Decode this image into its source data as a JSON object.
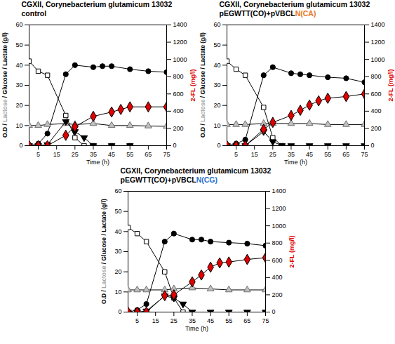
{
  "chart_data": [
    {
      "type": "line",
      "title": "CGXII, Corynebacterium glutamicum 13032",
      "subtitle": [
        {
          "text": "control",
          "color": "#000000"
        }
      ],
      "xlabel": "Time (h)",
      "ylabel": [
        {
          "text": "O.D / ",
          "color": "#000000"
        },
        {
          "text": "Lactose",
          "color": "#a6a6a6"
        },
        {
          "text": " / Glucose / Lactate (g/l)",
          "color": "#000000"
        }
      ],
      "y2label": "2-FL (mg/l)",
      "y2label_color": "#e00000",
      "xlim": [
        0,
        75
      ],
      "xticks": [
        5,
        15,
        25,
        35,
        45,
        55,
        65,
        75
      ],
      "ylim": [
        0,
        60
      ],
      "yticks": [
        0,
        10,
        20,
        30,
        40,
        50,
        60
      ],
      "y2lim": [
        0,
        1400
      ],
      "y2ticks": [
        0,
        200,
        400,
        600,
        800,
        1000,
        1200,
        1400
      ],
      "series": [
        {
          "name": "O.D",
          "color": "#000000",
          "marker": "circle",
          "x": [
            0,
            5,
            10,
            20,
            25,
            35,
            40,
            45,
            55,
            65,
            75
          ],
          "values": [
            0,
            1,
            6,
            35.5,
            40,
            39,
            39.5,
            39.5,
            38,
            37,
            36.5
          ]
        },
        {
          "name": "Glucose",
          "color": "#000000",
          "marker": "square",
          "x": [
            0,
            5,
            10,
            20,
            25,
            30,
            35,
            45,
            55
          ],
          "values": [
            42,
            37,
            35,
            15,
            4,
            0,
            0,
            0,
            0
          ]
        },
        {
          "name": "Lactose",
          "color": "#bfbfbf",
          "marker": "triangle",
          "x": [
            0,
            5,
            10,
            20,
            25,
            35,
            45,
            55,
            65,
            75
          ],
          "values": [
            10,
            10,
            10.5,
            11,
            10.5,
            11,
            10,
            10,
            9.8,
            9.6
          ]
        },
        {
          "name": "Lactate",
          "color": "#000000",
          "marker": "triangle-down",
          "x": [
            0,
            5,
            10,
            20,
            25,
            30,
            35,
            45,
            55
          ],
          "values": [
            0,
            0,
            0.5,
            12,
            7,
            4,
            0,
            0,
            0
          ]
        },
        {
          "name": "2-FL",
          "color": "#e00000",
          "marker": "diamond",
          "axis": "y2",
          "x": [
            0,
            5,
            10,
            20,
            25,
            35,
            45,
            50,
            55,
            65,
            75
          ],
          "values": [
            0,
            0,
            0,
            120,
            220,
            340,
            390,
            420,
            450,
            450,
            450
          ]
        }
      ]
    },
    {
      "type": "line",
      "title": "CGXII, Corynebacterium glutamicum 13032",
      "subtitle": [
        {
          "text": "pEGWTT(CO)+pVBCL",
          "color": "#000000"
        },
        {
          "text": "N(CA)",
          "color": "#e87722"
        }
      ],
      "xlabel": "Time (h)",
      "ylabel": [
        {
          "text": "O.D / ",
          "color": "#000000"
        },
        {
          "text": "Lactose",
          "color": "#a6a6a6"
        },
        {
          "text": " / Glucose / Lactate (g/l)",
          "color": "#000000"
        }
      ],
      "y2label": "2-FL (mg/l)",
      "y2label_color": "#e00000",
      "xlim": [
        0,
        75
      ],
      "xticks": [
        5,
        15,
        25,
        35,
        45,
        55,
        65,
        75
      ],
      "ylim": [
        0,
        60
      ],
      "yticks": [
        0,
        10,
        20,
        30,
        40,
        50,
        60
      ],
      "y2lim": [
        0,
        1400
      ],
      "y2ticks": [
        0,
        200,
        400,
        600,
        800,
        1000,
        1200,
        1400
      ],
      "series": [
        {
          "name": "O.D",
          "color": "#000000",
          "marker": "circle",
          "x": [
            0,
            5,
            10,
            20,
            25,
            35,
            40,
            45,
            55,
            65,
            75
          ],
          "values": [
            0,
            1,
            3,
            35,
            39,
            36,
            35.5,
            35,
            34,
            33.5,
            31.5
          ]
        },
        {
          "name": "Glucose",
          "color": "#000000",
          "marker": "square",
          "x": [
            0,
            5,
            10,
            20,
            25,
            30
          ],
          "values": [
            42,
            38,
            35,
            19,
            4,
            0
          ]
        },
        {
          "name": "Lactose",
          "color": "#bfbfbf",
          "marker": "triangle",
          "x": [
            0,
            5,
            10,
            20,
            25,
            35,
            45,
            55,
            65,
            75
          ],
          "values": [
            10.5,
            10.5,
            10.5,
            11,
            11,
            11,
            11,
            10.5,
            10.5,
            10.5
          ]
        },
        {
          "name": "Lactate",
          "color": "#000000",
          "marker": "triangle-down",
          "x": [
            0,
            5,
            10,
            20,
            25,
            30,
            35,
            45,
            55,
            65,
            75
          ],
          "values": [
            0,
            0,
            0,
            7,
            2,
            0,
            0,
            0,
            0,
            0,
            0
          ]
        },
        {
          "name": "2-FL",
          "color": "#e00000",
          "marker": "diamond",
          "axis": "y2",
          "x": [
            0,
            5,
            10,
            20,
            25,
            35,
            40,
            45,
            50,
            55,
            65,
            75
          ],
          "values": [
            0,
            0,
            0,
            190,
            270,
            350,
            410,
            470,
            520,
            550,
            570,
            600
          ]
        }
      ]
    },
    {
      "type": "line",
      "title": "CGXII, Corynebacterium glutamicum 13032",
      "subtitle": [
        {
          "text": "pEGWTT(CO)+pVBCL",
          "color": "#000000"
        },
        {
          "text": "N(CG)",
          "color": "#1f6fd1"
        }
      ],
      "xlabel": "Time (h)",
      "ylabel": [
        {
          "text": "O.D / ",
          "color": "#000000"
        },
        {
          "text": "Lactose",
          "color": "#a6a6a6"
        },
        {
          "text": " / Glucose / Lactate (g/l)",
          "color": "#000000"
        }
      ],
      "y2label": "2-FL (mg/l)",
      "y2label_color": "#e00000",
      "xlim": [
        0,
        75
      ],
      "xticks": [
        5,
        15,
        25,
        35,
        45,
        55,
        65,
        75
      ],
      "ylim": [
        0,
        60
      ],
      "yticks": [
        0,
        10,
        20,
        30,
        40,
        50,
        60
      ],
      "y2lim": [
        0,
        1400
      ],
      "y2ticks": [
        0,
        200,
        400,
        600,
        800,
        1000,
        1200,
        1400
      ],
      "series": [
        {
          "name": "O.D",
          "color": "#000000",
          "marker": "circle",
          "x": [
            0,
            5,
            10,
            20,
            25,
            35,
            40,
            45,
            55,
            65,
            75
          ],
          "values": [
            0,
            1,
            4,
            35,
            39,
            36,
            36,
            35,
            34.5,
            34,
            33
          ]
        },
        {
          "name": "Glucose",
          "color": "#000000",
          "marker": "square",
          "x": [
            0,
            5,
            10,
            20,
            25,
            30
          ],
          "values": [
            42,
            39,
            35,
            20,
            7,
            0
          ]
        },
        {
          "name": "Lactose",
          "color": "#bfbfbf",
          "marker": "triangle",
          "x": [
            0,
            5,
            10,
            20,
            25,
            35,
            45,
            55,
            65,
            75
          ],
          "values": [
            11,
            11,
            11,
            11,
            11.5,
            12,
            11.5,
            11,
            11,
            11
          ]
        },
        {
          "name": "Lactate",
          "color": "#000000",
          "marker": "triangle-down",
          "x": [
            0,
            5,
            10,
            20,
            25,
            30,
            35,
            45,
            55,
            65,
            75
          ],
          "values": [
            0,
            0,
            0.5,
            8,
            7,
            4,
            0,
            0,
            0,
            0,
            0
          ]
        },
        {
          "name": "2-FL",
          "color": "#e00000",
          "marker": "diamond",
          "axis": "y2",
          "x": [
            0,
            5,
            10,
            20,
            25,
            35,
            40,
            45,
            50,
            55,
            65,
            75
          ],
          "values": [
            0,
            0,
            0,
            190,
            200,
            350,
            430,
            520,
            570,
            580,
            610,
            630
          ]
        }
      ]
    }
  ]
}
